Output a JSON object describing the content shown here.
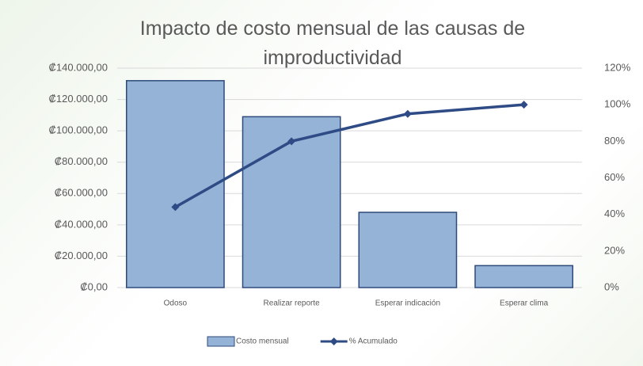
{
  "chart_data": {
    "type": "pareto",
    "title": "Impacto de costo mensual de las causas de improductividad",
    "categories": [
      "Odoso",
      "Realizar reporte",
      "Esperar indicación",
      "Esperar clima"
    ],
    "series": [
      {
        "name": "Costo mensual",
        "type": "bar",
        "color": "#95b3d7",
        "values": [
          132000,
          109000,
          48000,
          14000
        ]
      },
      {
        "name": "% Acumulado",
        "type": "line",
        "axis": "y2",
        "color": "#2f4b86",
        "values": [
          44,
          80,
          95,
          100
        ]
      }
    ],
    "ylim": [
      0,
      140000
    ],
    "yticks": [
      {
        "value": 0,
        "label": "₡0,00"
      },
      {
        "value": 20000,
        "label": "₡20.000,00"
      },
      {
        "value": 40000,
        "label": "₡40.000,00"
      },
      {
        "value": 60000,
        "label": "₡60.000,00"
      },
      {
        "value": 80000,
        "label": "₡80.000,00"
      },
      {
        "value": 100000,
        "label": "₡100.000,00"
      },
      {
        "value": 120000,
        "label": "₡120.000,00"
      },
      {
        "value": 140000,
        "label": "₡140.000,00"
      }
    ],
    "y2lim": [
      0,
      120
    ],
    "y2ticks": [
      {
        "value": 0,
        "label": "0%"
      },
      {
        "value": 20,
        "label": "20%"
      },
      {
        "value": 40,
        "label": "40%"
      },
      {
        "value": 60,
        "label": "60%"
      },
      {
        "value": 80,
        "label": "80%"
      },
      {
        "value": 100,
        "label": "100%"
      },
      {
        "value": 120,
        "label": "120%"
      }
    ],
    "grid": true,
    "legend": "bottom"
  }
}
